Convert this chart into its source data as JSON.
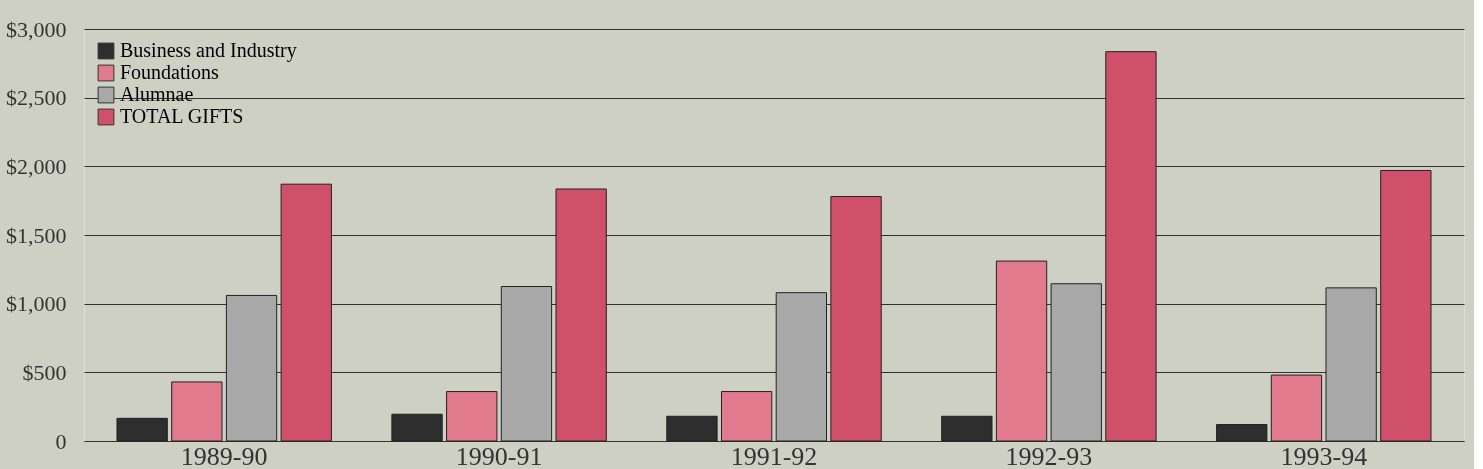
{
  "chart_data": {
    "type": "bar",
    "categories": [
      "1989-90",
      "1990-91",
      "1991-92",
      "1992-93",
      "1993-94"
    ],
    "series": [
      {
        "name": "Business and Industry",
        "color": "#2e2e2e",
        "values": [
          165,
          195,
          180,
          180,
          120
        ]
      },
      {
        "name": "Foundations",
        "color": "#e07a8c",
        "values": [
          430,
          360,
          360,
          1310,
          480
        ]
      },
      {
        "name": "Alumnae",
        "color": "#a8a8a8",
        "values": [
          1060,
          1125,
          1080,
          1145,
          1115
        ]
      },
      {
        "name": "TOTAL GIFTS",
        "color": "#d0506a",
        "values": [
          1870,
          1835,
          1780,
          2835,
          1970
        ]
      }
    ],
    "ylim": [
      0,
      3000
    ],
    "yticks": [
      {
        "value": 0,
        "label": "0"
      },
      {
        "value": 500,
        "label": "$500"
      },
      {
        "value": 1000,
        "label": "$1,000"
      },
      {
        "value": 1500,
        "label": "$1,500"
      },
      {
        "value": 2000,
        "label": "$2,000"
      },
      {
        "value": 2500,
        "label": "$2,500"
      },
      {
        "value": 3000,
        "label": "$3,000"
      }
    ],
    "grid": "y",
    "legend": "top left"
  }
}
